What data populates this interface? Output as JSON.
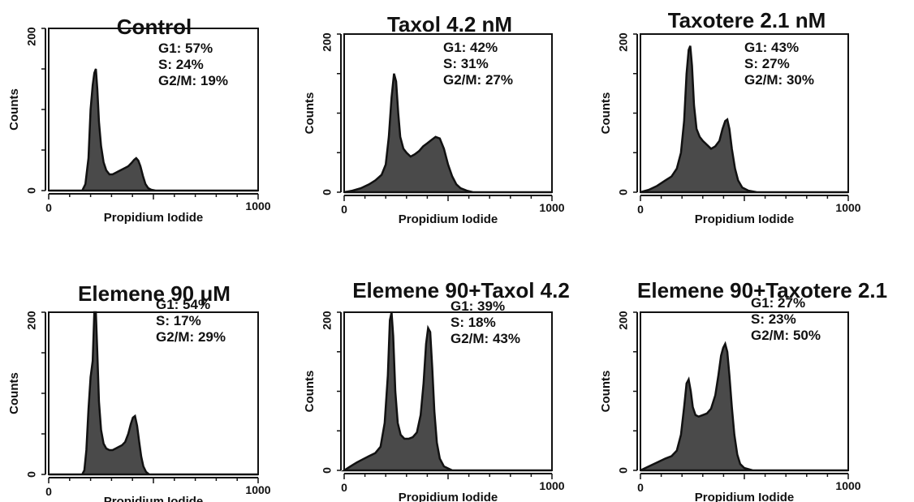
{
  "chart_data": [
    {
      "type": "area",
      "title": "Control",
      "xlabel": "Propidium Iodide",
      "ylabel": "Counts",
      "xlim": [
        0,
        1000
      ],
      "ylim": [
        0,
        200
      ],
      "x_ticks": [
        "0",
        "1000"
      ],
      "y_ticks": [
        "0",
        "200"
      ],
      "annotations": [
        "G1: 57%",
        "S: 24%",
        "G2/M: 19%"
      ],
      "x": [
        0,
        160,
        175,
        190,
        200,
        210,
        218,
        225,
        232,
        240,
        250,
        262,
        275,
        290,
        305,
        320,
        335,
        350,
        365,
        380,
        395,
        408,
        418,
        428,
        438,
        450,
        462,
        475,
        490,
        510,
        1000
      ],
      "y": [
        0,
        0,
        8,
        40,
        100,
        130,
        145,
        150,
        125,
        85,
        55,
        35,
        25,
        20,
        20,
        22,
        24,
        26,
        28,
        30,
        34,
        38,
        40,
        37,
        30,
        18,
        8,
        3,
        1,
        0,
        0
      ]
    },
    {
      "type": "area",
      "title": "Taxol 4.2 nM",
      "xlabel": "Propidium Iodide",
      "ylabel": "Counts",
      "xlim": [
        0,
        1000
      ],
      "ylim": [
        0,
        200
      ],
      "x_ticks": [
        "0",
        "1000"
      ],
      "y_ticks": [
        "0",
        "200"
      ],
      "annotations": [
        "G1: 42%",
        "S: 31%",
        "G2/M: 27%"
      ],
      "x": [
        0,
        40,
        80,
        120,
        150,
        180,
        200,
        215,
        228,
        240,
        250,
        260,
        270,
        285,
        300,
        320,
        340,
        360,
        380,
        400,
        420,
        440,
        460,
        480,
        500,
        520,
        540,
        560,
        590,
        620,
        1000
      ],
      "y": [
        0,
        2,
        5,
        10,
        15,
        22,
        35,
        70,
        120,
        150,
        140,
        100,
        70,
        55,
        50,
        45,
        48,
        52,
        58,
        62,
        66,
        70,
        68,
        55,
        35,
        20,
        10,
        5,
        2,
        0,
        0
      ]
    },
    {
      "type": "area",
      "title": "Taxotere 2.1 nM",
      "xlabel": "Propidium Iodide",
      "ylabel": "Counts",
      "xlim": [
        0,
        1000
      ],
      "ylim": [
        0,
        200
      ],
      "x_ticks": [
        "0",
        "1000"
      ],
      "y_ticks": [
        "0",
        "200"
      ],
      "annotations": [
        "G1: 43%",
        "S: 27%",
        "G2/M: 30%"
      ],
      "x": [
        0,
        40,
        80,
        120,
        150,
        175,
        195,
        210,
        222,
        232,
        240,
        248,
        258,
        270,
        285,
        300,
        320,
        340,
        360,
        380,
        395,
        408,
        418,
        428,
        440,
        455,
        470,
        490,
        520,
        560,
        1000
      ],
      "y": [
        0,
        3,
        8,
        15,
        20,
        30,
        50,
        90,
        150,
        180,
        185,
        160,
        110,
        80,
        70,
        65,
        60,
        55,
        58,
        65,
        80,
        90,
        92,
        80,
        55,
        30,
        15,
        6,
        2,
        0,
        0
      ]
    },
    {
      "type": "area",
      "title": "Elemene 90 μM",
      "xlabel": "Propidium Iodide",
      "ylabel": "Counts",
      "xlim": [
        0,
        1000
      ],
      "ylim": [
        0,
        200
      ],
      "x_ticks": [
        "0",
        "1000"
      ],
      "y_ticks": [
        "0",
        "200"
      ],
      "annotations": [
        "G1: 54%",
        "S: 17%",
        "G2/M: 29%"
      ],
      "x": [
        0,
        160,
        170,
        180,
        190,
        200,
        210,
        218,
        225,
        232,
        240,
        250,
        262,
        275,
        290,
        305,
        320,
        335,
        350,
        365,
        380,
        392,
        402,
        412,
        422,
        432,
        442,
        452,
        465,
        480,
        1000
      ],
      "y": [
        0,
        0,
        5,
        30,
        80,
        120,
        140,
        200,
        210,
        150,
        90,
        55,
        38,
        32,
        30,
        30,
        32,
        34,
        36,
        40,
        50,
        62,
        70,
        72,
        60,
        40,
        22,
        10,
        3,
        0,
        0
      ]
    },
    {
      "type": "area",
      "title": "Elemene 90+Taxol 4.2",
      "xlabel": "Propidium Iodide",
      "ylabel": "Counts",
      "xlim": [
        0,
        1000
      ],
      "ylim": [
        0,
        200
      ],
      "x_ticks": [
        "0",
        "1000"
      ],
      "y_ticks": [
        "0",
        "200"
      ],
      "annotations": [
        "G1: 39%",
        "S: 18%",
        "G2/M: 43%"
      ],
      "x": [
        0,
        30,
        60,
        90,
        120,
        150,
        175,
        195,
        210,
        220,
        228,
        236,
        246,
        258,
        272,
        290,
        310,
        330,
        350,
        368,
        382,
        394,
        404,
        414,
        424,
        434,
        446,
        460,
        480,
        520,
        1000
      ],
      "y": [
        0,
        5,
        10,
        14,
        18,
        22,
        30,
        60,
        120,
        190,
        200,
        170,
        100,
        60,
        45,
        40,
        40,
        42,
        48,
        70,
        110,
        160,
        180,
        175,
        130,
        75,
        35,
        15,
        5,
        0,
        0
      ]
    },
    {
      "type": "area",
      "title": "Elemene 90+Taxotere 2.1",
      "xlabel": "Propidium Iodide",
      "ylabel": "Counts",
      "xlim": [
        0,
        1000
      ],
      "ylim": [
        0,
        200
      ],
      "x_ticks": [
        "0",
        "1000"
      ],
      "y_ticks": [
        "0",
        "200"
      ],
      "annotations": [
        "G1: 27%",
        "S: 23%",
        "G2/M: 50%"
      ],
      "x": [
        0,
        40,
        80,
        120,
        150,
        175,
        195,
        210,
        222,
        232,
        242,
        252,
        265,
        280,
        300,
        320,
        340,
        360,
        375,
        388,
        398,
        408,
        418,
        428,
        440,
        452,
        466,
        480,
        500,
        540,
        1000
      ],
      "y": [
        0,
        5,
        10,
        15,
        18,
        25,
        45,
        80,
        110,
        115,
        100,
        80,
        70,
        68,
        70,
        72,
        78,
        95,
        120,
        145,
        155,
        160,
        150,
        120,
        80,
        45,
        20,
        8,
        3,
        0,
        0
      ]
    }
  ]
}
